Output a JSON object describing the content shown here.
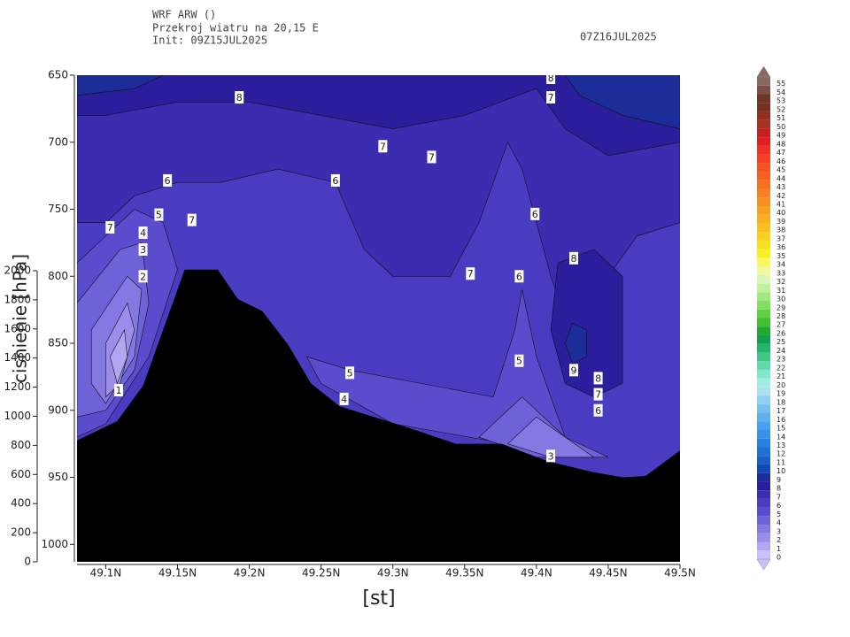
{
  "chart_data": {
    "type": "contour",
    "title": "WRF ARW ()",
    "subtitle": "Przekroj wiatru na 20,15 E",
    "init": "Init: 09Z15JUL2025",
    "valid": "07Z16JUL2025",
    "xlabel": "[st]",
    "ylabel": "cisnienie [hPa]",
    "xlim": [
      49.08,
      49.5
    ],
    "xticks": [
      {
        "value": 49.1,
        "label": "49.1N"
      },
      {
        "value": 49.15,
        "label": "49.15N"
      },
      {
        "value": 49.2,
        "label": "49.2N"
      },
      {
        "value": 49.25,
        "label": "49.25N"
      },
      {
        "value": 49.3,
        "label": "49.3N"
      },
      {
        "value": 49.35,
        "label": "49.35N"
      },
      {
        "value": 49.4,
        "label": "49.4N"
      },
      {
        "value": 49.45,
        "label": "49.45N"
      },
      {
        "value": 49.5,
        "label": "49.5N"
      }
    ],
    "ylim": [
      650,
      1013
    ],
    "yticks": [
      650,
      700,
      750,
      800,
      850,
      900,
      950,
      1000
    ],
    "log_scale": false,
    "y2lim": [
      0,
      2000
    ],
    "y2ticks": [
      0,
      200,
      400,
      600,
      800,
      1000,
      1200,
      1400,
      1600,
      1800,
      2000
    ],
    "base_level": 6,
    "regions": [
      {
        "level": 7,
        "x": [
          49.08,
          49.5,
          49.5,
          49.47,
          49.45,
          49.44,
          49.42,
          49.41,
          49.4,
          49.39,
          49.38,
          49.36,
          49.34,
          49.3,
          49.28,
          49.26,
          49.22,
          49.18,
          49.15,
          49.12,
          49.1,
          49.08
        ],
        "y": [
          650,
          650,
          760,
          770,
          800,
          830,
          830,
          800,
          760,
          720,
          700,
          760,
          800,
          800,
          780,
          730,
          720,
          730,
          730,
          740,
          760,
          760
        ]
      },
      {
        "level": 8,
        "x": [
          49.08,
          49.5,
          49.5,
          49.45,
          49.42,
          49.4,
          49.35,
          49.3,
          49.25,
          49.2,
          49.15,
          49.1,
          49.08
        ],
        "y": [
          650,
          650,
          700,
          710,
          690,
          660,
          680,
          690,
          680,
          670,
          670,
          680,
          680
        ]
      },
      {
        "level": 8,
        "x": [
          49.415,
          49.44,
          49.46,
          49.46,
          49.44,
          49.42,
          49.41
        ],
        "y": [
          790,
          780,
          800,
          880,
          890,
          880,
          840
        ]
      },
      {
        "level": 9,
        "x": [
          49.08,
          49.14,
          49.12,
          49.08
        ],
        "y": [
          650,
          650,
          660,
          665
        ]
      },
      {
        "level": 9,
        "x": [
          49.42,
          49.5,
          49.5,
          49.46,
          49.43
        ],
        "y": [
          650,
          650,
          690,
          680,
          665
        ]
      },
      {
        "level": 9,
        "x": [
          49.425,
          49.435,
          49.435,
          49.425,
          49.42
        ],
        "y": [
          835,
          840,
          860,
          865,
          850
        ]
      },
      {
        "level": 5,
        "x": [
          49.08,
          49.1,
          49.12,
          49.14,
          49.15,
          49.13,
          49.1,
          49.08
        ],
        "y": [
          790,
          770,
          750,
          760,
          795,
          860,
          910,
          920
        ]
      },
      {
        "level": 5,
        "x": [
          49.24,
          49.27,
          49.32,
          49.37,
          49.385,
          49.39,
          49.4,
          49.42,
          49.38,
          49.3,
          49.25
        ],
        "y": [
          860,
          870,
          880,
          890,
          840,
          810,
          860,
          920,
          925,
          910,
          880
        ]
      },
      {
        "level": 4,
        "x": [
          49.08,
          49.11,
          49.125,
          49.13,
          49.12,
          49.1,
          49.08
        ],
        "y": [
          820,
          780,
          775,
          820,
          870,
          900,
          905
        ]
      },
      {
        "level": 4,
        "x": [
          49.36,
          49.39,
          49.42,
          49.45,
          49.4
        ],
        "y": [
          920,
          890,
          920,
          935,
          935
        ]
      },
      {
        "level": 3,
        "x": [
          49.09,
          49.115,
          49.125,
          49.12,
          49.1,
          49.09
        ],
        "y": [
          840,
          800,
          810,
          860,
          895,
          880
        ]
      },
      {
        "level": 3,
        "x": [
          49.38,
          49.4,
          49.44,
          49.41
        ],
        "y": [
          925,
          905,
          935,
          935
        ]
      },
      {
        "level": 2,
        "x": [
          49.1,
          49.115,
          49.12,
          49.11,
          49.1
        ],
        "y": [
          850,
          820,
          840,
          880,
          890
        ]
      },
      {
        "level": 1,
        "x": [
          49.103,
          49.113,
          49.115,
          49.108
        ],
        "y": [
          860,
          840,
          860,
          880
        ]
      }
    ],
    "terrain": {
      "x": [
        49.08,
        49.108,
        49.126,
        49.155,
        49.178,
        49.192,
        49.209,
        49.227,
        49.243,
        49.263,
        49.284,
        49.311,
        49.344,
        49.376,
        49.408,
        49.439,
        49.46,
        49.476,
        49.5
      ],
      "values": [
        922.5,
        908,
        881.6,
        795,
        795,
        817,
        826,
        851,
        880,
        897,
        904,
        913,
        925,
        925,
        938,
        946,
        950,
        949,
        930
      ],
      "color": "#000000"
    },
    "contour_labels": [
      {
        "level": 8,
        "x": 49.193,
        "y": 666.5
      },
      {
        "level": 7,
        "x": 49.293,
        "y": 703
      },
      {
        "level": 7,
        "x": 49.327,
        "y": 711
      },
      {
        "level": 6,
        "x": 49.143,
        "y": 728.5
      },
      {
        "level": 6,
        "x": 49.26,
        "y": 728.5
      },
      {
        "level": 5,
        "x": 49.137,
        "y": 754
      },
      {
        "level": 7,
        "x": 49.16,
        "y": 758
      },
      {
        "level": 7,
        "x": 49.103,
        "y": 763.5
      },
      {
        "level": 4,
        "x": 49.126,
        "y": 767.5
      },
      {
        "level": 3,
        "x": 49.126,
        "y": 780
      },
      {
        "level": 2,
        "x": 49.126,
        "y": 800
      },
      {
        "level": 1,
        "x": 49.109,
        "y": 885
      },
      {
        "level": 5,
        "x": 49.27,
        "y": 872
      },
      {
        "level": 4,
        "x": 49.266,
        "y": 891.5
      },
      {
        "level": 6,
        "x": 49.399,
        "y": 753.5
      },
      {
        "level": 7,
        "x": 49.354,
        "y": 798
      },
      {
        "level": 6,
        "x": 49.388,
        "y": 800
      },
      {
        "level": 8,
        "x": 49.426,
        "y": 786.5
      },
      {
        "level": 5,
        "x": 49.388,
        "y": 863
      },
      {
        "level": 9,
        "x": 49.426,
        "y": 870
      },
      {
        "level": 8,
        "x": 49.443,
        "y": 876
      },
      {
        "level": 7,
        "x": 49.443,
        "y": 888
      },
      {
        "level": 6,
        "x": 49.443,
        "y": 900
      },
      {
        "level": 3,
        "x": 49.41,
        "y": 934
      },
      {
        "level": 8,
        "x": 49.41,
        "y": 652
      },
      {
        "level": 7,
        "x": 49.41,
        "y": 666.5
      }
    ],
    "colorbar": {
      "levels": [
        0,
        1,
        2,
        3,
        4,
        5,
        6,
        7,
        8,
        9,
        10,
        11,
        12,
        13,
        14,
        15,
        16,
        17,
        18,
        19,
        20,
        21,
        22,
        23,
        24,
        25,
        26,
        27,
        28,
        29,
        30,
        31,
        32,
        33,
        34,
        35,
        36,
        37,
        38,
        39,
        40,
        41,
        42,
        43,
        44,
        45,
        46,
        47,
        48,
        49,
        50,
        51,
        52,
        53,
        54,
        55
      ],
      "colors": [
        "#c8c0f8",
        "#b0a6f2",
        "#9a8eea",
        "#8478e2",
        "#6e62d8",
        "#5a4ccc",
        "#4a3cc0",
        "#3c2cb0",
        "#2a1e9c",
        "#1c2c98",
        "#1448b8",
        "#1860c8",
        "#2070d8",
        "#2880e0",
        "#3890e8",
        "#48a0f0",
        "#60b0f0",
        "#78c0f0",
        "#90d0f0",
        "#a8e0f0",
        "#a0f0e0",
        "#80e8c8",
        "#60d8a8",
        "#40c888",
        "#20b868",
        "#10a050",
        "#20a830",
        "#40c030",
        "#60d040",
        "#80e060",
        "#a0e880",
        "#c0f0a0",
        "#d8f8b8",
        "#f0f8a0",
        "#f8f860",
        "#f8f020",
        "#f8e020",
        "#f8d020",
        "#f8c020",
        "#f8b020",
        "#f8a020",
        "#f89020",
        "#f88020",
        "#f87020",
        "#f86020",
        "#f85020",
        "#f84020",
        "#f03020",
        "#e02020",
        "#c82020",
        "#a83020",
        "#903020",
        "#7a3020",
        "#6a3828",
        "#7a5048",
        "#8a6a60"
      ]
    }
  }
}
